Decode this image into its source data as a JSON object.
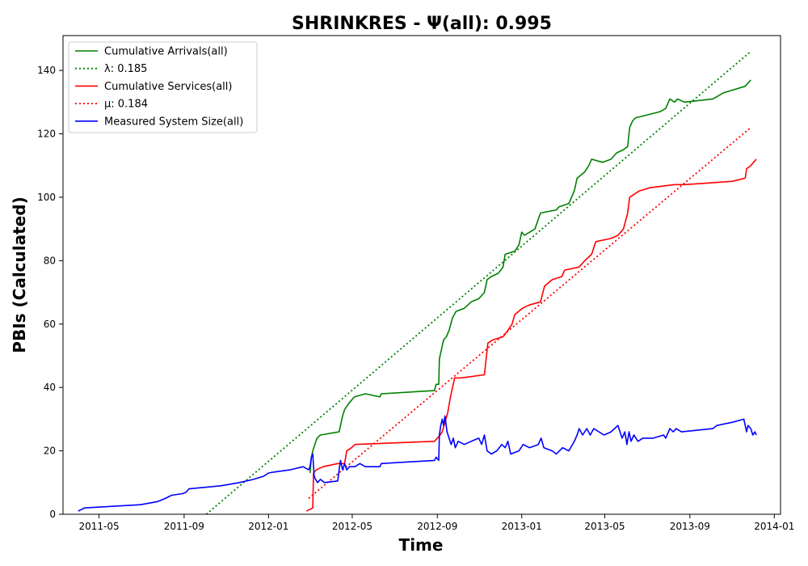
{
  "chart_data": {
    "type": "line",
    "title": "SHRINKRES -  Ψ(all): 0.995",
    "xlabel": "Time",
    "ylabel": "PBIs (Calculated)",
    "xlim": [
      "2011-03-10",
      "2014-01-10"
    ],
    "ylim": [
      0,
      151
    ],
    "grid": false,
    "legend_position": "top-left",
    "x_ticks": [
      "2011-05-01",
      "2011-09-01",
      "2012-01-01",
      "2012-05-01",
      "2012-09-01",
      "2013-01-01",
      "2013-05-01",
      "2013-09-01",
      "2014-01-01"
    ],
    "x_tick_labels": [
      "2011-05",
      "2011-09",
      "2012-01",
      "2012-05",
      "2012-09",
      "2013-01",
      "2013-05",
      "2013-09",
      "2014-01"
    ],
    "y_ticks": [
      0,
      20,
      40,
      60,
      80,
      100,
      120,
      140
    ],
    "series": [
      {
        "name": "Cumulative Arrivals(all)",
        "style": "solid",
        "color": "#008000",
        "points": [
          [
            "2012-03-01",
            13
          ],
          [
            "2012-03-03",
            18
          ],
          [
            "2012-03-05",
            20
          ],
          [
            "2012-03-08",
            22
          ],
          [
            "2012-03-11",
            24
          ],
          [
            "2012-03-16",
            25
          ],
          [
            "2012-04-12",
            26
          ],
          [
            "2012-04-14",
            28
          ],
          [
            "2012-04-17",
            31
          ],
          [
            "2012-04-20",
            33
          ],
          [
            "2012-04-26",
            35
          ],
          [
            "2012-05-04",
            37
          ],
          [
            "2012-05-20",
            38
          ],
          [
            "2012-06-10",
            37
          ],
          [
            "2012-06-12",
            38
          ],
          [
            "2012-08-28",
            39
          ],
          [
            "2012-08-30",
            41
          ],
          [
            "2012-09-03",
            41
          ],
          [
            "2012-09-04",
            49
          ],
          [
            "2012-09-07",
            52
          ],
          [
            "2012-09-10",
            55
          ],
          [
            "2012-09-14",
            56
          ],
          [
            "2012-09-18",
            58
          ],
          [
            "2012-09-23",
            62
          ],
          [
            "2012-09-28",
            64
          ],
          [
            "2012-10-10",
            65
          ],
          [
            "2012-10-20",
            67
          ],
          [
            "2012-10-31",
            68
          ],
          [
            "2012-11-08",
            70
          ],
          [
            "2012-11-12",
            74
          ],
          [
            "2012-11-18",
            75
          ],
          [
            "2012-11-28",
            76
          ],
          [
            "2012-12-05",
            78
          ],
          [
            "2012-12-08",
            82
          ],
          [
            "2012-12-22",
            83
          ],
          [
            "2012-12-28",
            85
          ],
          [
            "2013-01-01",
            89
          ],
          [
            "2013-01-05",
            88
          ],
          [
            "2013-01-20",
            90
          ],
          [
            "2013-01-28",
            95
          ],
          [
            "2013-02-20",
            96
          ],
          [
            "2013-02-24",
            97
          ],
          [
            "2013-03-10",
            98
          ],
          [
            "2013-03-18",
            102
          ],
          [
            "2013-03-22",
            106
          ],
          [
            "2013-04-02",
            108
          ],
          [
            "2013-04-08",
            110
          ],
          [
            "2013-04-12",
            112
          ],
          [
            "2013-04-28",
            111
          ],
          [
            "2013-05-10",
            112
          ],
          [
            "2013-05-18",
            114
          ],
          [
            "2013-05-28",
            115
          ],
          [
            "2013-06-03",
            116
          ],
          [
            "2013-06-06",
            122
          ],
          [
            "2013-06-10",
            124
          ],
          [
            "2013-06-14",
            125
          ],
          [
            "2013-07-20",
            127
          ],
          [
            "2013-07-28",
            128
          ],
          [
            "2013-08-03",
            131
          ],
          [
            "2013-08-10",
            130
          ],
          [
            "2013-08-14",
            131
          ],
          [
            "2013-08-24",
            130
          ],
          [
            "2013-10-04",
            131
          ],
          [
            "2013-10-20",
            133
          ],
          [
            "2013-11-20",
            135
          ],
          [
            "2013-11-28",
            137
          ]
        ]
      },
      {
        "name": "λ: 0.185",
        "style": "dotted",
        "color": "#008000",
        "points": [
          [
            "2011-10-03",
            0
          ],
          [
            "2013-11-28",
            146
          ]
        ]
      },
      {
        "name": "Cumulative Services(all)",
        "style": "solid",
        "color": "#ff0000",
        "points": [
          [
            "2012-02-25",
            1
          ],
          [
            "2012-03-05",
            2
          ],
          [
            "2012-03-06",
            13
          ],
          [
            "2012-03-10",
            14
          ],
          [
            "2012-03-20",
            15
          ],
          [
            "2012-04-10",
            16
          ],
          [
            "2012-04-20",
            16
          ],
          [
            "2012-04-23",
            20
          ],
          [
            "2012-04-30",
            21
          ],
          [
            "2012-05-05",
            22
          ],
          [
            "2012-08-28",
            23
          ],
          [
            "2012-09-05",
            25
          ],
          [
            "2012-09-08",
            26
          ],
          [
            "2012-09-16",
            32
          ],
          [
            "2012-09-20",
            37
          ],
          [
            "2012-09-26",
            43
          ],
          [
            "2012-10-05",
            43
          ],
          [
            "2012-11-08",
            44
          ],
          [
            "2012-11-13",
            54
          ],
          [
            "2012-11-20",
            55
          ],
          [
            "2012-12-05",
            56
          ],
          [
            "2012-12-12",
            58
          ],
          [
            "2012-12-18",
            60
          ],
          [
            "2012-12-22",
            63
          ],
          [
            "2013-01-02",
            65
          ],
          [
            "2013-01-12",
            66
          ],
          [
            "2013-01-28",
            67
          ],
          [
            "2013-02-03",
            72
          ],
          [
            "2013-02-14",
            74
          ],
          [
            "2013-02-28",
            75
          ],
          [
            "2013-03-04",
            77
          ],
          [
            "2013-03-25",
            78
          ],
          [
            "2013-04-02",
            80
          ],
          [
            "2013-04-12",
            82
          ],
          [
            "2013-04-18",
            86
          ],
          [
            "2013-05-10",
            87
          ],
          [
            "2013-05-20",
            88
          ],
          [
            "2013-05-28",
            90
          ],
          [
            "2013-06-03",
            95
          ],
          [
            "2013-06-06",
            100
          ],
          [
            "2013-06-20",
            102
          ],
          [
            "2013-07-05",
            103
          ],
          [
            "2013-08-10",
            104
          ],
          [
            "2013-08-25",
            104
          ],
          [
            "2013-11-01",
            105
          ],
          [
            "2013-11-20",
            106
          ],
          [
            "2013-11-22",
            109
          ],
          [
            "2013-11-28",
            110
          ],
          [
            "2013-12-06",
            112
          ]
        ]
      },
      {
        "name": "μ: 0.184",
        "style": "dotted",
        "color": "#ff0000",
        "points": [
          [
            "2012-02-28",
            5
          ],
          [
            "2013-11-28",
            122
          ]
        ]
      },
      {
        "name": "Measured System Size(all)",
        "style": "solid",
        "color": "#0000ff",
        "points": [
          [
            "2011-04-01",
            1
          ],
          [
            "2011-04-10",
            2
          ],
          [
            "2011-05-20",
            2.5
          ],
          [
            "2011-06-30",
            3
          ],
          [
            "2011-07-25",
            4
          ],
          [
            "2011-08-05",
            5
          ],
          [
            "2011-08-14",
            6
          ],
          [
            "2011-08-30",
            6.5
          ],
          [
            "2011-09-04",
            7
          ],
          [
            "2011-09-08",
            8
          ],
          [
            "2011-10-01",
            8.5
          ],
          [
            "2011-10-25",
            9
          ],
          [
            "2011-11-20",
            10
          ],
          [
            "2011-12-10",
            11
          ],
          [
            "2011-12-25",
            12
          ],
          [
            "2012-01-01",
            13
          ],
          [
            "2012-01-08",
            13.3
          ],
          [
            "2012-02-01",
            14
          ],
          [
            "2012-02-20",
            15
          ],
          [
            "2012-02-28",
            14
          ],
          [
            "2012-03-01",
            15
          ],
          [
            "2012-03-03",
            18
          ],
          [
            "2012-03-05",
            19
          ],
          [
            "2012-03-07",
            12
          ],
          [
            "2012-03-09",
            11
          ],
          [
            "2012-03-12",
            10
          ],
          [
            "2012-03-16",
            11
          ],
          [
            "2012-03-22",
            10
          ],
          [
            "2012-04-10",
            10.5
          ],
          [
            "2012-04-12",
            14
          ],
          [
            "2012-04-14",
            17
          ],
          [
            "2012-04-17",
            14
          ],
          [
            "2012-04-20",
            16
          ],
          [
            "2012-04-23",
            14
          ],
          [
            "2012-04-27",
            15
          ],
          [
            "2012-05-05",
            15
          ],
          [
            "2012-05-12",
            16
          ],
          [
            "2012-05-20",
            15
          ],
          [
            "2012-06-10",
            15
          ],
          [
            "2012-06-12",
            16
          ],
          [
            "2012-08-28",
            17
          ],
          [
            "2012-08-30",
            18
          ],
          [
            "2012-09-03",
            17
          ],
          [
            "2012-09-04",
            25
          ],
          [
            "2012-09-06",
            28
          ],
          [
            "2012-09-08",
            30
          ],
          [
            "2012-09-10",
            28
          ],
          [
            "2012-09-12",
            31
          ],
          [
            "2012-09-15",
            26
          ],
          [
            "2012-09-18",
            24
          ],
          [
            "2012-09-21",
            22
          ],
          [
            "2012-09-24",
            24
          ],
          [
            "2012-09-27",
            21
          ],
          [
            "2012-10-01",
            23
          ],
          [
            "2012-10-10",
            22
          ],
          [
            "2012-10-20",
            23
          ],
          [
            "2012-10-31",
            24
          ],
          [
            "2012-11-04",
            22
          ],
          [
            "2012-11-08",
            25
          ],
          [
            "2012-11-12",
            20
          ],
          [
            "2012-11-18",
            19
          ],
          [
            "2012-11-26",
            20
          ],
          [
            "2012-12-03",
            22
          ],
          [
            "2012-12-08",
            21
          ],
          [
            "2012-12-12",
            23
          ],
          [
            "2012-12-16",
            19
          ],
          [
            "2012-12-28",
            20
          ],
          [
            "2013-01-03",
            22
          ],
          [
            "2013-01-12",
            21
          ],
          [
            "2013-01-25",
            22
          ],
          [
            "2013-01-29",
            24
          ],
          [
            "2013-02-02",
            21
          ],
          [
            "2013-02-14",
            20
          ],
          [
            "2013-02-20",
            19
          ],
          [
            "2013-03-01",
            21
          ],
          [
            "2013-03-10",
            20
          ],
          [
            "2013-03-18",
            23
          ],
          [
            "2013-03-22",
            25
          ],
          [
            "2013-03-25",
            27
          ],
          [
            "2013-03-30",
            25
          ],
          [
            "2013-04-05",
            27
          ],
          [
            "2013-04-10",
            25
          ],
          [
            "2013-04-15",
            27
          ],
          [
            "2013-04-30",
            25
          ],
          [
            "2013-05-10",
            26
          ],
          [
            "2013-05-20",
            28
          ],
          [
            "2013-05-26",
            24
          ],
          [
            "2013-05-30",
            26
          ],
          [
            "2013-06-02",
            22
          ],
          [
            "2013-06-05",
            26
          ],
          [
            "2013-06-08",
            23
          ],
          [
            "2013-06-12",
            25
          ],
          [
            "2013-06-18",
            23
          ],
          [
            "2013-06-25",
            24
          ],
          [
            "2013-07-10",
            24
          ],
          [
            "2013-07-25",
            25
          ],
          [
            "2013-07-28",
            24
          ],
          [
            "2013-08-03",
            27
          ],
          [
            "2013-08-08",
            26
          ],
          [
            "2013-08-12",
            27
          ],
          [
            "2013-08-20",
            26
          ],
          [
            "2013-10-04",
            27
          ],
          [
            "2013-10-10",
            28
          ],
          [
            "2013-11-01",
            29
          ],
          [
            "2013-11-18",
            30
          ],
          [
            "2013-11-22",
            26
          ],
          [
            "2013-11-24",
            28
          ],
          [
            "2013-11-28",
            27
          ],
          [
            "2013-12-01",
            25
          ],
          [
            "2013-12-04",
            26
          ],
          [
            "2013-12-06",
            25
          ]
        ]
      }
    ]
  }
}
